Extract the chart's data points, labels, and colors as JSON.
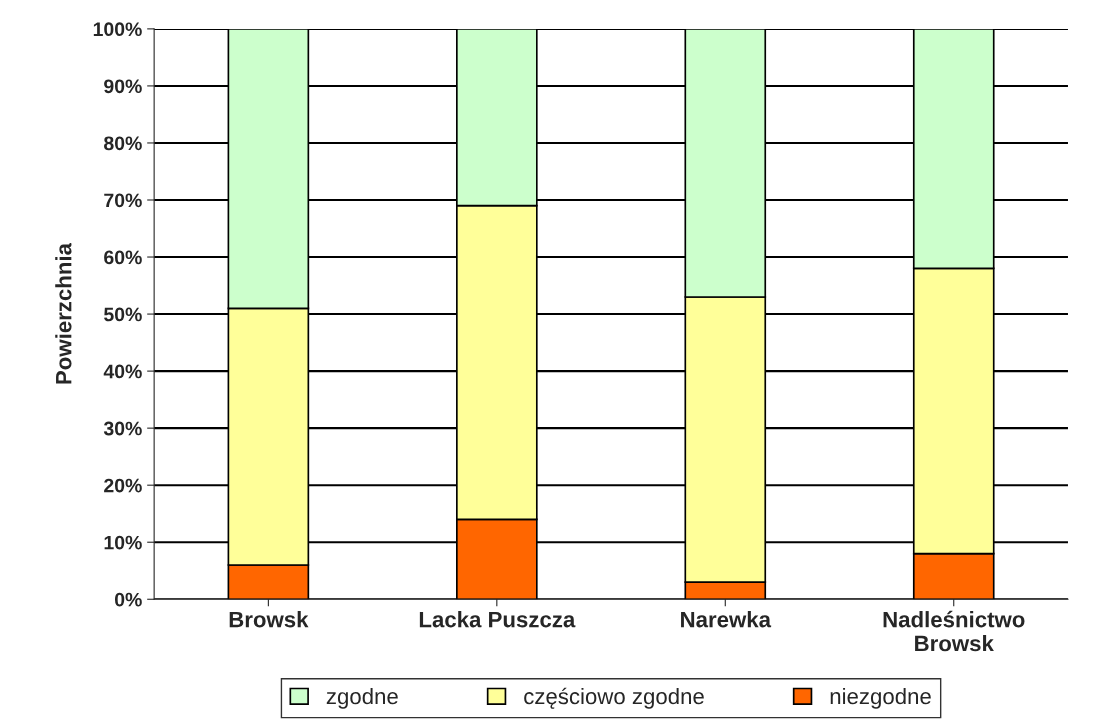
{
  "chart_data": {
    "type": "bar",
    "stacked": true,
    "ylabel": "Powierzchnia",
    "categories": [
      "Browsk",
      "Lacka Puszcza",
      "Narewka",
      "Nadleśnictwo\nBrowsk"
    ],
    "series": [
      {
        "name": "niezgodne",
        "color": "#ff6600",
        "values": [
          6,
          14,
          3,
          8
        ]
      },
      {
        "name": "częściowo zgodne",
        "color": "#ffff99",
        "values": [
          45,
          55,
          50,
          50
        ]
      },
      {
        "name": "zgodne",
        "color": "#ccffcc",
        "values": [
          49,
          31,
          47,
          42
        ]
      }
    ],
    "ylim": [
      0,
      100
    ],
    "yticks": [
      {
        "value": 0,
        "label": "0%"
      },
      {
        "value": 10,
        "label": "10%"
      },
      {
        "value": 20,
        "label": "20%"
      },
      {
        "value": 30,
        "label": "30%"
      },
      {
        "value": 40,
        "label": "40%"
      },
      {
        "value": 50,
        "label": "50%"
      },
      {
        "value": 60,
        "label": "60%"
      },
      {
        "value": 70,
        "label": "70%"
      },
      {
        "value": 80,
        "label": "80%"
      },
      {
        "value": 90,
        "label": "90%"
      },
      {
        "value": 100,
        "label": "100%"
      }
    ],
    "grid": "y",
    "legend": "bottom"
  }
}
